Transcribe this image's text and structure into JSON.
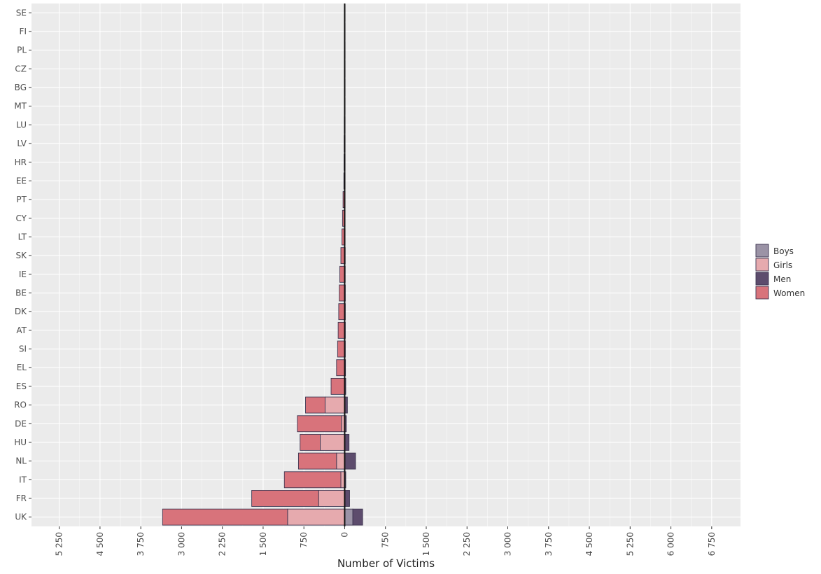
{
  "chart_data": {
    "type": "bar",
    "orientation": "horizontal",
    "stacking": "diverging",
    "title": "",
    "xlabel": "Number of Victims",
    "ylabel": "",
    "categories": [
      "SE",
      "FI",
      "PL",
      "CZ",
      "BG",
      "MT",
      "LU",
      "LV",
      "HR",
      "EE",
      "PT",
      "CY",
      "LT",
      "SK",
      "IE",
      "BE",
      "DK",
      "AT",
      "SI",
      "EL",
      "ES",
      "RO",
      "DE",
      "HU",
      "NL",
      "IT",
      "FR",
      "UK"
    ],
    "x_tick_values": [
      -5250,
      -4500,
      -3750,
      -3000,
      -2250,
      -1500,
      -750,
      0,
      750,
      1500,
      2250,
      3000,
      3750,
      4500,
      5250,
      6000,
      6750
    ],
    "x_tick_labels": [
      "5 250",
      "4 500",
      "3 750",
      "3 000",
      "2 250",
      "1 500",
      "750",
      "0",
      "750",
      "1 500",
      "2 250",
      "3 000",
      "3 750",
      "4 500",
      "5 250",
      "6 000",
      "6 750"
    ],
    "xlim": [
      -5760,
      7280
    ],
    "grid": true,
    "legend_position": "right",
    "colors": {
      "panel": "#ebebeb",
      "grid": "#ffffff",
      "outline": "#3d3550",
      "zero_line": "#111111"
    },
    "series": [
      {
        "name": "Boys",
        "direction": "right",
        "color": "#9b93a6",
        "values": [
          0,
          0,
          0,
          0,
          0,
          0,
          0,
          0,
          0,
          0,
          0,
          0,
          0,
          0,
          0,
          0,
          0,
          0,
          0,
          0,
          0,
          0,
          0,
          0,
          0,
          0,
          0,
          150
        ]
      },
      {
        "name": "Girls",
        "direction": "left",
        "color": "#e6aaae",
        "values": [
          0,
          0,
          0,
          0,
          0,
          0,
          0,
          0,
          0,
          0,
          0,
          0,
          0,
          0,
          0,
          0,
          0,
          0,
          0,
          0,
          0,
          360,
          60,
          450,
          150,
          70,
          480,
          1050
        ]
      },
      {
        "name": "Men",
        "direction": "right",
        "color": "#5d4c6d",
        "values": [
          3,
          2,
          2,
          2,
          3,
          2,
          3,
          3,
          4,
          5,
          5,
          6,
          8,
          10,
          10,
          12,
          12,
          12,
          12,
          15,
          20,
          50,
          30,
          80,
          200,
          20,
          90,
          180
        ]
      },
      {
        "name": "Women",
        "direction": "left",
        "color": "#d8737b",
        "values": [
          4,
          5,
          5,
          5,
          6,
          6,
          8,
          10,
          12,
          15,
          30,
          40,
          50,
          70,
          90,
          100,
          110,
          120,
          130,
          150,
          250,
          360,
          810,
          370,
          700,
          1040,
          1230,
          2300
        ]
      }
    ]
  }
}
